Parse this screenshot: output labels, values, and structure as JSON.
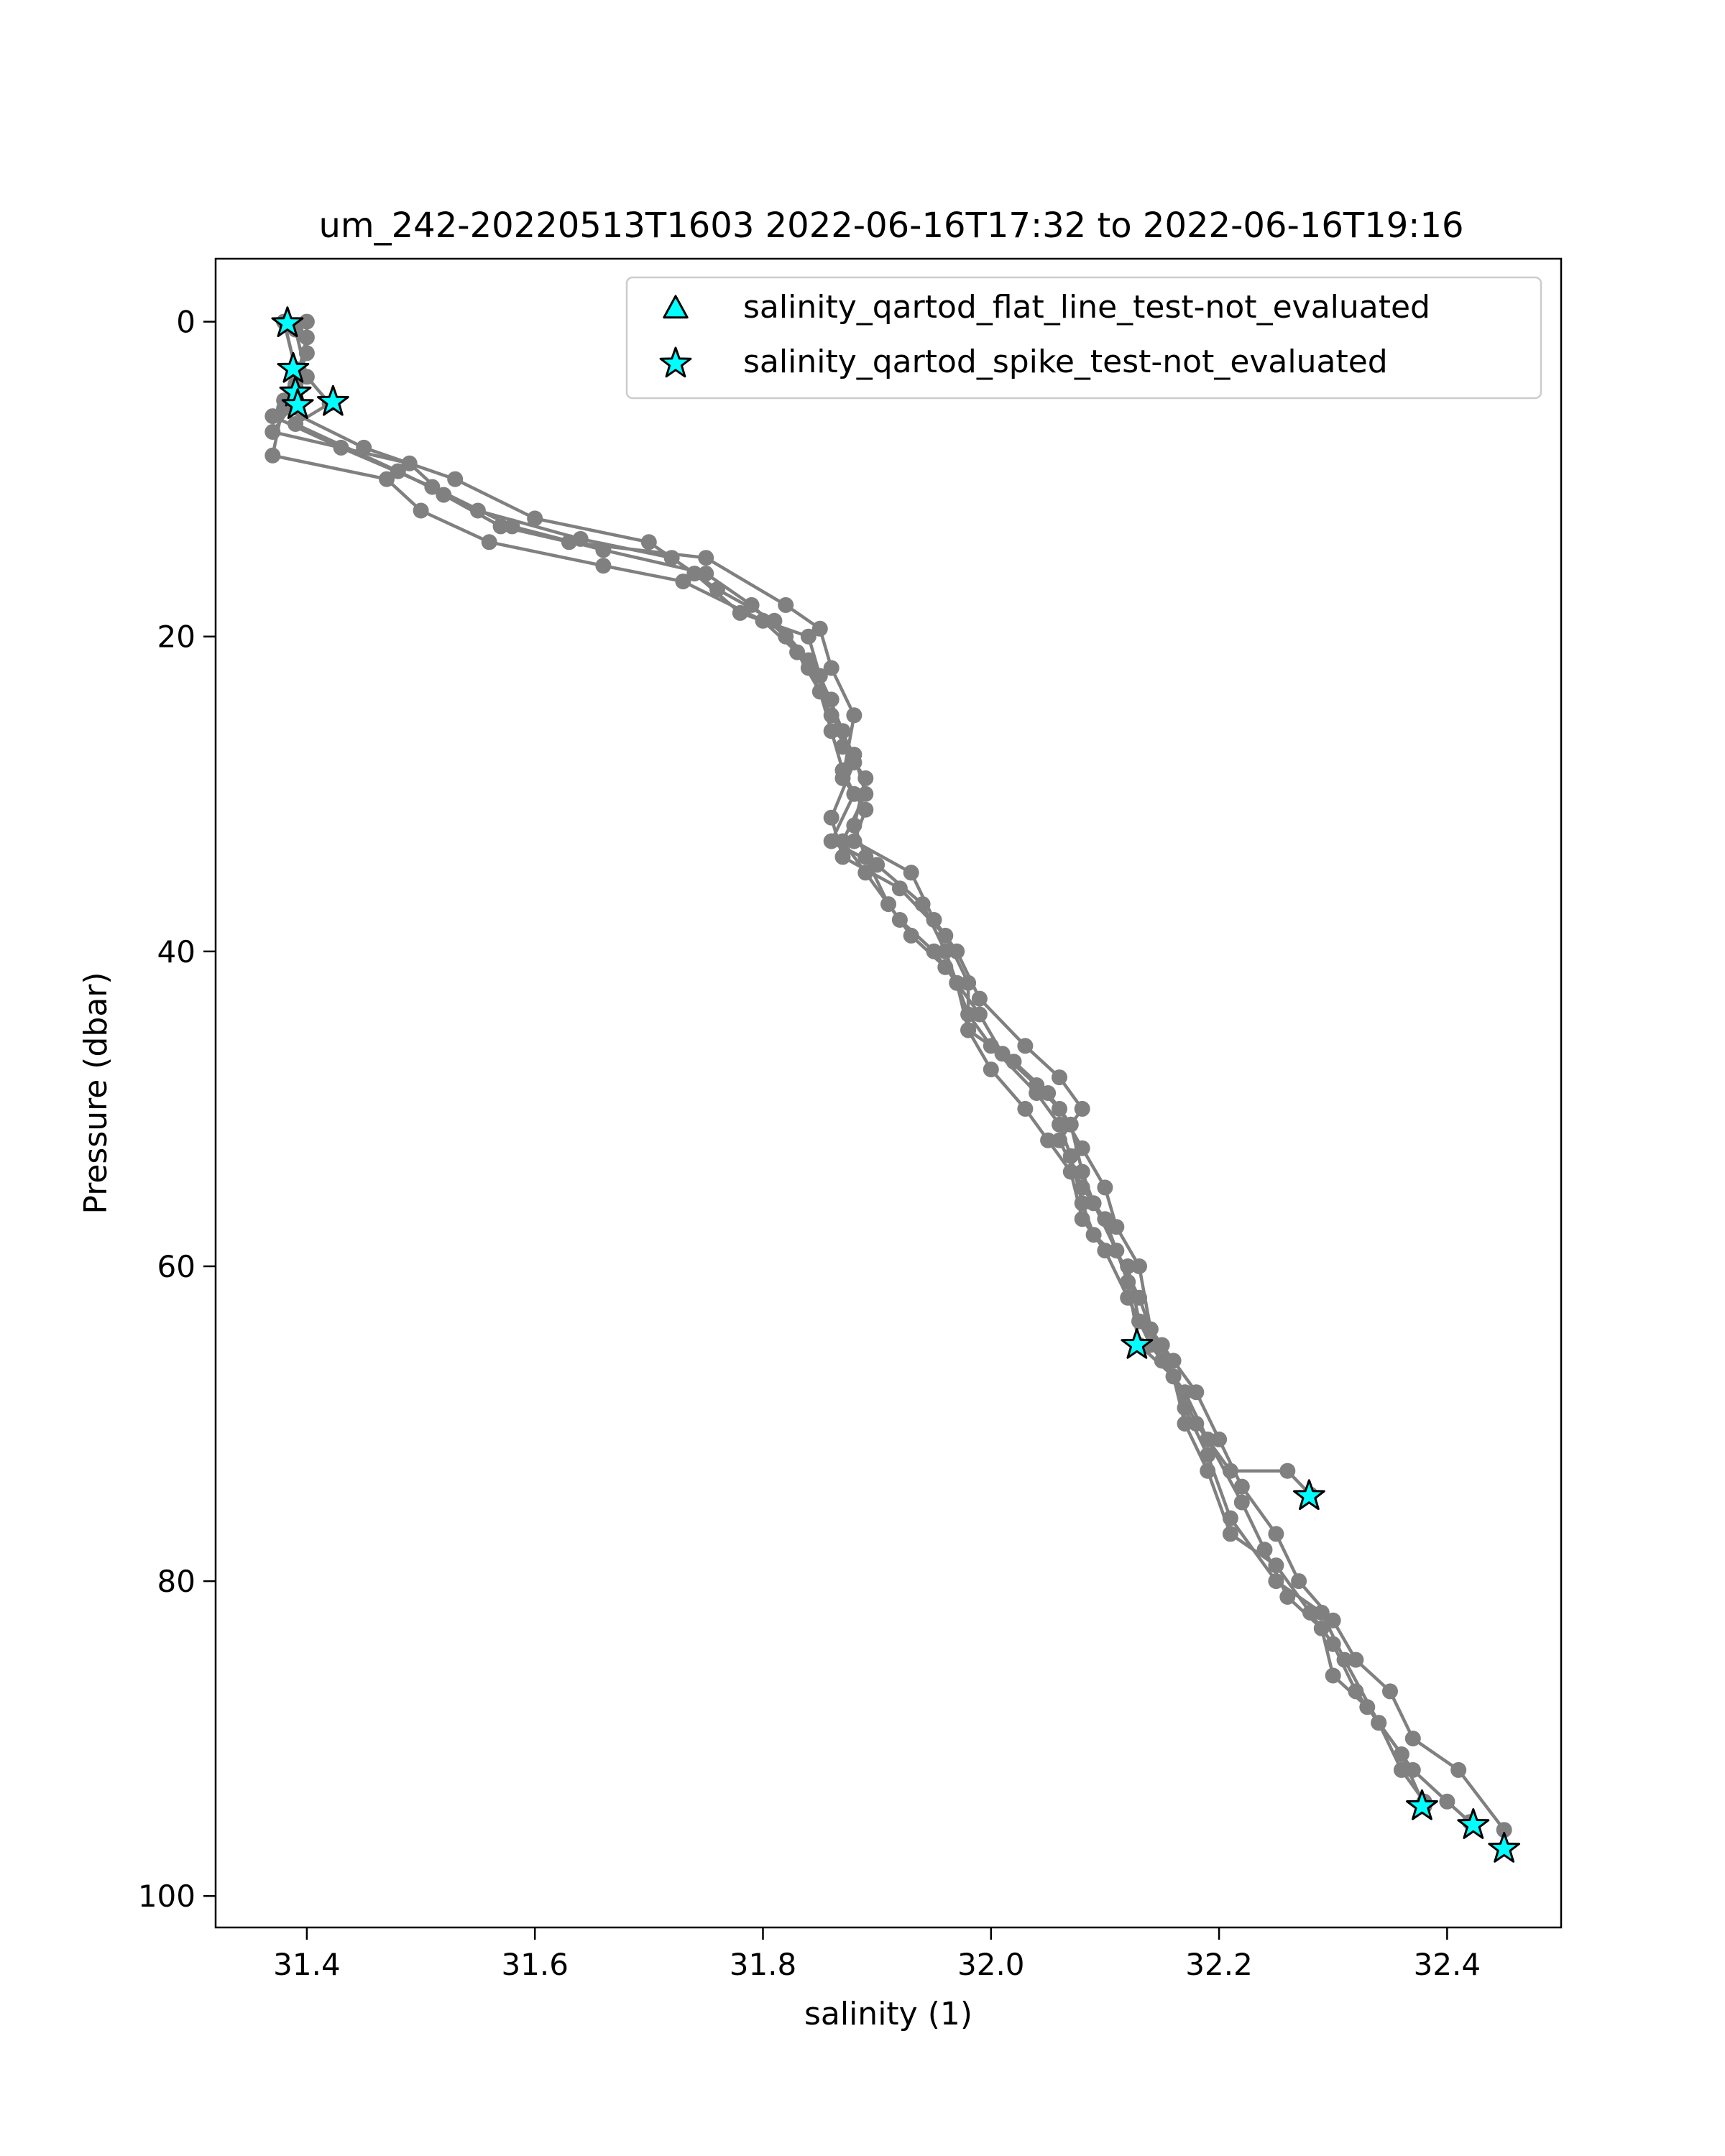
{
  "chart_data": {
    "type": "scatter",
    "title": "um_242-20220513T1603 2022-06-16T17:32 to 2022-06-16T19:16",
    "xlabel": "salinity (1)",
    "ylabel": "Pressure (dbar)",
    "xlim": [
      31.32,
      32.5
    ],
    "ylim": [
      102,
      -4
    ],
    "y_inverted": true,
    "grid": false,
    "legend_position": "top-right",
    "x_ticks": [
      "31.4",
      "31.6",
      "31.8",
      "32.0",
      "32.2",
      "32.4"
    ],
    "y_ticks": [
      "0",
      "20",
      "40",
      "60",
      "80",
      "100"
    ],
    "colors": {
      "profile": "#808080",
      "marker": "#00ffff"
    },
    "profiles": [
      [
        [
          31.38,
          0
        ],
        [
          31.39,
          3
        ],
        [
          31.39,
          4.5
        ],
        [
          31.39,
          5
        ],
        [
          31.37,
          7
        ],
        [
          31.49,
          9
        ],
        [
          31.52,
          11
        ],
        [
          31.57,
          13
        ],
        [
          31.63,
          14
        ],
        [
          31.75,
          15
        ],
        [
          31.82,
          18
        ],
        [
          31.85,
          19.5
        ],
        [
          31.86,
          22
        ],
        [
          31.88,
          25
        ],
        [
          31.87,
          29
        ],
        [
          31.89,
          31
        ],
        [
          31.88,
          33
        ],
        [
          31.93,
          35
        ],
        [
          31.95,
          38
        ],
        [
          31.97,
          40
        ],
        [
          31.99,
          43
        ],
        [
          32.03,
          46
        ],
        [
          32.06,
          48
        ],
        [
          32.08,
          50
        ],
        [
          32.06,
          52
        ],
        [
          32.08,
          55
        ],
        [
          32.1,
          57
        ],
        [
          32.12,
          61
        ],
        [
          32.13,
          65
        ],
        [
          32.16,
          67
        ],
        [
          32.18,
          70
        ],
        [
          32.21,
          73
        ],
        [
          32.26,
          73
        ],
        [
          32.28,
          74.5
        ]
      ],
      [
        [
          31.4,
          0
        ],
        [
          31.4,
          2
        ],
        [
          31.39,
          4
        ],
        [
          31.38,
          5.5
        ],
        [
          31.45,
          8
        ],
        [
          31.53,
          10
        ],
        [
          31.6,
          12.5
        ],
        [
          31.7,
          14
        ],
        [
          31.74,
          16
        ],
        [
          31.78,
          18.5
        ],
        [
          31.84,
          20
        ],
        [
          31.85,
          22.5
        ],
        [
          31.87,
          26
        ],
        [
          31.88,
          28
        ],
        [
          31.86,
          31.5
        ],
        [
          31.87,
          34
        ],
        [
          31.92,
          36
        ],
        [
          31.96,
          39
        ],
        [
          31.98,
          42
        ],
        [
          31.98,
          45
        ],
        [
          32.02,
          47
        ],
        [
          32.05,
          49
        ],
        [
          32.07,
          51
        ],
        [
          32.08,
          54
        ],
        [
          32.09,
          56
        ],
        [
          32.11,
          59
        ],
        [
          32.13,
          62
        ],
        [
          32.15,
          66
        ],
        [
          32.17,
          68
        ],
        [
          32.19,
          71
        ],
        [
          32.22,
          75
        ],
        [
          32.24,
          78
        ],
        [
          32.26,
          81
        ],
        [
          32.29,
          83
        ],
        [
          32.3,
          86
        ],
        [
          32.33,
          88
        ],
        [
          32.36,
          91
        ],
        [
          32.38,
          94.3
        ]
      ],
      [
        [
          31.38,
          0
        ],
        [
          31.39,
          3
        ],
        [
          31.38,
          5
        ],
        [
          31.37,
          8.5
        ],
        [
          31.47,
          10
        ],
        [
          31.5,
          12
        ],
        [
          31.56,
          14
        ],
        [
          31.66,
          15.5
        ],
        [
          31.73,
          16.5
        ],
        [
          31.8,
          19
        ],
        [
          31.83,
          21
        ],
        [
          31.85,
          23.5
        ],
        [
          31.86,
          26
        ],
        [
          31.87,
          28.5
        ],
        [
          31.88,
          30
        ],
        [
          31.86,
          33
        ],
        [
          31.9,
          34.5
        ],
        [
          31.94,
          37
        ],
        [
          31.96,
          40
        ],
        [
          31.98,
          44
        ],
        [
          32.0,
          46
        ],
        [
          32.04,
          49
        ],
        [
          32.06,
          51
        ],
        [
          32.07,
          53
        ],
        [
          32.08,
          56
        ],
        [
          32.09,
          58
        ],
        [
          32.12,
          60
        ],
        [
          32.13,
          63.5
        ],
        [
          32.15,
          65
        ],
        [
          32.17,
          69
        ],
        [
          32.19,
          72
        ],
        [
          32.21,
          76
        ],
        [
          32.25,
          80
        ],
        [
          32.29,
          82
        ],
        [
          32.31,
          85
        ],
        [
          32.34,
          89
        ],
        [
          32.37,
          92
        ],
        [
          32.4,
          94
        ],
        [
          32.42,
          95.3
        ]
      ],
      [
        [
          31.39,
          0.5
        ],
        [
          31.4,
          3.5
        ],
        [
          31.42,
          5.2
        ],
        [
          31.39,
          6.5
        ],
        [
          31.48,
          9.5
        ],
        [
          31.55,
          12
        ],
        [
          31.64,
          13.8
        ],
        [
          31.72,
          15
        ],
        [
          31.76,
          17
        ],
        [
          31.81,
          19
        ],
        [
          31.84,
          21.5
        ],
        [
          31.86,
          24
        ],
        [
          31.87,
          27
        ],
        [
          31.89,
          29
        ],
        [
          31.88,
          32
        ],
        [
          31.89,
          34
        ],
        [
          31.91,
          37
        ],
        [
          31.93,
          39
        ],
        [
          31.96,
          41
        ],
        [
          31.99,
          44
        ],
        [
          32.01,
          46.5
        ],
        [
          32.04,
          48.5
        ],
        [
          32.06,
          50
        ],
        [
          32.08,
          52.5
        ],
        [
          32.1,
          55
        ],
        [
          32.11,
          57.5
        ],
        [
          32.13,
          60
        ],
        [
          32.14,
          64
        ],
        [
          32.16,
          66
        ],
        [
          32.18,
          68
        ],
        [
          32.2,
          71
        ],
        [
          32.22,
          74
        ],
        [
          32.25,
          77
        ],
        [
          32.27,
          80
        ],
        [
          32.3,
          82.5
        ],
        [
          32.32,
          85
        ],
        [
          32.35,
          87
        ],
        [
          32.37,
          90
        ],
        [
          32.41,
          92
        ],
        [
          32.45,
          95.8
        ],
        [
          32.45,
          97
        ]
      ],
      [
        [
          31.4,
          1
        ],
        [
          31.39,
          4
        ],
        [
          31.37,
          6
        ],
        [
          31.43,
          8
        ],
        [
          31.51,
          10.5
        ],
        [
          31.58,
          13
        ],
        [
          31.66,
          14.5
        ],
        [
          31.75,
          16
        ],
        [
          31.79,
          18
        ],
        [
          31.82,
          20
        ],
        [
          31.84,
          22
        ],
        [
          31.86,
          25
        ],
        [
          31.88,
          27.5
        ],
        [
          31.89,
          30
        ],
        [
          31.87,
          33
        ],
        [
          31.89,
          35
        ],
        [
          31.92,
          38
        ],
        [
          31.95,
          40
        ],
        [
          31.97,
          42
        ],
        [
          31.98,
          45
        ],
        [
          32.0,
          47.5
        ],
        [
          32.03,
          50
        ],
        [
          32.05,
          52
        ],
        [
          32.07,
          54
        ],
        [
          32.08,
          57
        ],
        [
          32.1,
          59
        ],
        [
          32.12,
          62
        ],
        [
          32.14,
          65
        ],
        [
          32.16,
          67
        ],
        [
          32.17,
          70
        ],
        [
          32.19,
          73
        ],
        [
          32.21,
          77
        ],
        [
          32.25,
          79
        ],
        [
          32.28,
          82
        ],
        [
          32.3,
          84
        ],
        [
          32.32,
          87
        ],
        [
          32.34,
          89
        ],
        [
          32.36,
          92
        ],
        [
          32.38,
          94
        ]
      ]
    ],
    "series": [
      {
        "name": "salinity_qartod_flat_line_test-not_evaluated",
        "marker": "triangle",
        "points": []
      },
      {
        "name": "salinity_qartod_spike_test-not_evaluated",
        "marker": "star",
        "points": [
          [
            31.383,
            0.1
          ],
          [
            31.388,
            3.0
          ],
          [
            31.39,
            4.5
          ],
          [
            31.392,
            5.3
          ],
          [
            31.423,
            5.1
          ],
          [
            32.128,
            65.0
          ],
          [
            32.279,
            74.6
          ],
          [
            32.378,
            94.3
          ],
          [
            32.423,
            95.5
          ],
          [
            32.45,
            97.0
          ]
        ]
      }
    ]
  }
}
